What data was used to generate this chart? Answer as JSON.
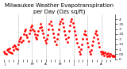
{
  "title": "Milwaukee Weather Evapotranspiration\nper Day (Ozs sq/ft)",
  "title_fontsize": 5,
  "bg_color": "#ffffff",
  "dot_color": "#ff0000",
  "grid_color": "#aaaaaa",
  "ylabel_color": "#000000",
  "figsize": [
    1.6,
    0.87
  ],
  "dpi": 100,
  "x_values": [
    0,
    1,
    2,
    3,
    4,
    5,
    6,
    7,
    8,
    9,
    10,
    11,
    12,
    13,
    14,
    15,
    16,
    17,
    18,
    19,
    20,
    21,
    22,
    23,
    24,
    25,
    26,
    27,
    28,
    29,
    30,
    31,
    32,
    33,
    34,
    35,
    36,
    37,
    38,
    39,
    40,
    41,
    42,
    43,
    44,
    45,
    46,
    47,
    48,
    49,
    50,
    51,
    52,
    53,
    54,
    55,
    56,
    57,
    58,
    59,
    60,
    61,
    62,
    63,
    64,
    65,
    66,
    67,
    68,
    69,
    70,
    71,
    72,
    73,
    74,
    75,
    76,
    77,
    78,
    79,
    80,
    81,
    82,
    83,
    84,
    85,
    86,
    87,
    88,
    89,
    90,
    91,
    92,
    93,
    94,
    95,
    96,
    97,
    98,
    99,
    100,
    101,
    102,
    103,
    104,
    105,
    106,
    107,
    108,
    109,
    110,
    111,
    112,
    113,
    114,
    115,
    116,
    117,
    118,
    119
  ],
  "y_values": [
    0.08,
    0.06,
    0.05,
    0.09,
    0.1,
    0.08,
    0.11,
    0.07,
    0.06,
    0.12,
    0.09,
    0.14,
    0.13,
    0.11,
    0.1,
    0.15,
    0.18,
    0.2,
    0.22,
    0.17,
    0.19,
    0.25,
    0.28,
    0.3,
    0.24,
    0.22,
    0.18,
    0.26,
    0.29,
    0.32,
    0.34,
    0.3,
    0.28,
    0.25,
    0.22,
    0.2,
    0.24,
    0.28,
    0.31,
    0.35,
    0.32,
    0.29,
    0.26,
    0.22,
    0.19,
    0.16,
    0.2,
    0.24,
    0.3,
    0.35,
    0.38,
    0.34,
    0.3,
    0.26,
    0.22,
    0.18,
    0.15,
    0.2,
    0.25,
    0.3,
    0.35,
    0.38,
    0.4,
    0.36,
    0.32,
    0.28,
    0.24,
    0.2,
    0.17,
    0.22,
    0.28,
    0.34,
    0.38,
    0.4,
    0.36,
    0.32,
    0.28,
    0.24,
    0.2,
    0.16,
    0.12,
    0.08,
    0.05,
    0.1,
    0.15,
    0.2,
    0.25,
    0.28,
    0.24,
    0.2,
    0.16,
    0.12,
    0.08,
    0.05,
    0.09,
    0.14,
    0.18,
    0.22,
    0.26,
    0.28,
    0.24,
    0.2,
    0.16,
    0.12,
    0.08,
    0.05,
    0.08,
    0.06,
    0.04,
    0.07,
    0.05,
    0.03,
    0.06,
    0.04,
    0.03,
    0.05,
    0.04,
    0.03,
    0.04,
    0.03
  ],
  "ylim": [
    0.0,
    0.45
  ],
  "yticks": [
    0.0,
    0.05,
    0.1,
    0.15,
    0.2,
    0.25,
    0.3,
    0.35,
    0.4
  ],
  "ytick_labels": [
    "0",
    ".05",
    ".1",
    ".15",
    ".2",
    ".25",
    ".3",
    ".35",
    ".4"
  ],
  "vline_positions": [
    15,
    30,
    45,
    60,
    75,
    90,
    105
  ],
  "xtick_positions": [
    0,
    5,
    10,
    15,
    20,
    25,
    30,
    35,
    40,
    45,
    50,
    55,
    60,
    65,
    70,
    75,
    80,
    85,
    90,
    95,
    100,
    105,
    110,
    115
  ],
  "xtick_labels": [
    "J",
    "",
    "",
    "F",
    "",
    "",
    "M",
    "",
    "",
    "A",
    "",
    "",
    "M",
    "",
    "",
    "J",
    "",
    "",
    "J",
    "",
    "",
    "A",
    "",
    ""
  ],
  "marker_size": 2.0
}
